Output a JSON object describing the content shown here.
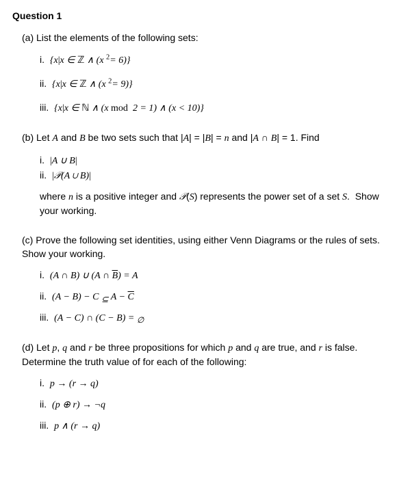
{
  "title": "Question 1",
  "parts": {
    "a": {
      "label": "(a)",
      "text": "List the elements of the following sets:",
      "items": {
        "i": {
          "label": "i.",
          "expr_html": "{<span class='math'>x</span><span class='abs'>|</span><span class='math'>x</span> ∈ <span class='setZ'>ℤ</span> ∧ (<span class='math'>x</span> <span class='sup'>2</span>= 6)}"
        },
        "ii": {
          "label": "ii.",
          "expr_html": "{<span class='math'>x</span><span class='abs'>|</span><span class='math'>x</span> ∈ <span class='setZ'>ℤ</span> ∧ (<span class='math'>x</span> <span class='sup'>2</span>= 9)}"
        },
        "iii": {
          "label": "iii.",
          "expr_html": "{<span class='math'>x</span><span class='abs'>|</span><span class='math'>x</span> ∈ <span class='setN'>ℕ</span> ∧ (<span class='math'>x</span> <span class='rm'>mod</span>&nbsp; 2 = 1) ∧ (<span class='math'>x</span> &lt; 10)}"
        }
      }
    },
    "b": {
      "label": "(b)",
      "text_html": "Let <span class='math'>A</span> and <span class='math'>B</span> be two sets such that <span class='abs'>|</span><span class='math'>A</span><span class='abs'>|</span> = <span class='abs'>|</span><span class='math'>B</span><span class='abs'>|</span> = <span class='math'>n</span> and <span class='abs'>|</span><span class='math'>A</span> ∩ <span class='math'>B</span><span class='abs'>|</span> = 1. Find",
      "items": {
        "i": {
          "label": "i.",
          "expr_html": "<span class='abs'>|</span><span class='math'>A</span> ∪ <span class='math'>B</span><span class='abs'>|</span>"
        },
        "ii": {
          "label": "ii.",
          "expr_html": "<span class='abs'>|</span><span class='calP'>𝒫</span>(<span class='math'>A</span> ∪ <span class='math'>B</span>)<span class='abs'>|</span>"
        }
      },
      "trail_html": "where <span class='math'>n</span> is a positive integer and <span class='calP'>𝒫</span>(<span class='math'>S</span>) represents the power set of a set <span class='math'>S</span>.&nbsp; Show your working."
    },
    "c": {
      "label": "(c)",
      "text": "Prove the following set identities, using either Venn Diagrams or the rules of sets.  Show your working.",
      "items": {
        "i": {
          "label": "i.",
          "expr_html": "(<span class='math'>A</span> ∩ <span class='math'>B</span>) ∪ (<span class='math'>A</span> ∩ <span class='math overbar'>B</span>) = <span class='math'>A</span>"
        },
        "ii": {
          "label": "ii.",
          "expr_html": "(<span class='math'>A</span> − <span class='math'>B</span>) − <span class='math'>C</span> <span class='subsym'>⊆</span> <span class='math'>A</span> − <span class='math overbar'>C</span>"
        },
        "iii": {
          "label": "iii.",
          "expr_html": "(<span class='math'>A</span> − <span class='math'>C</span>) ∩ (<span class='math'>C</span> − <span class='math'>B</span>) = <span class='empt'>∅</span>"
        }
      }
    },
    "d": {
      "label": "(d)",
      "text_html": "Let <span class='math'>p</span>, <span class='math'>q</span> and <span class='math'>r</span> be three propositions for which <span class='math'>p</span> and <span class='math'>q</span> are true, and <span class='math'>r</span> is false. Determine the truth value of for each of the following:",
      "items": {
        "i": {
          "label": "i.",
          "expr_html": "<span class='math'>p</span> → (<span class='math'>r</span> → <span class='math'>q</span>)"
        },
        "ii": {
          "label": "ii.",
          "expr_html": "(<span class='math'>p</span> ⊕ <span class='math'>r</span>) → ¬<span class='math'>q</span>"
        },
        "iii": {
          "label": "iii.",
          "expr_html": "<span class='math'>p</span> ∧ (<span class='math'>r</span> → <span class='math'>q</span>)"
        }
      }
    }
  }
}
